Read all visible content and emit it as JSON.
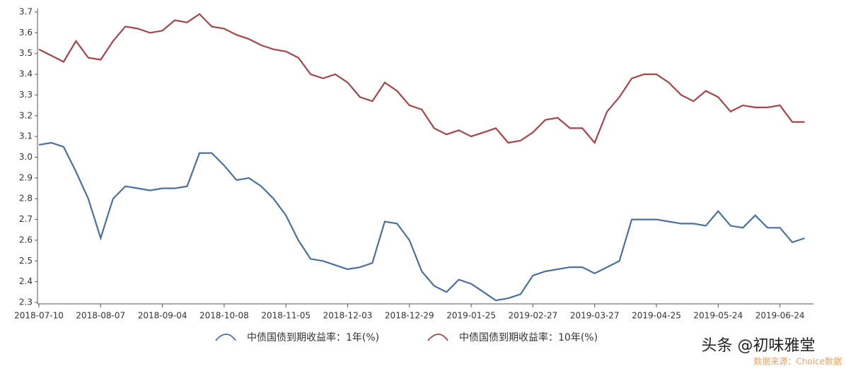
{
  "chart_data": {
    "type": "line",
    "categories": [
      "2018-07-10",
      null,
      null,
      null,
      null,
      "2018-08-07",
      null,
      null,
      null,
      null,
      "2018-09-04",
      null,
      null,
      null,
      null,
      "2018-10-08",
      null,
      null,
      null,
      null,
      "2018-11-05",
      null,
      null,
      null,
      null,
      "2018-12-03",
      null,
      null,
      null,
      null,
      "2018-12-29",
      null,
      null,
      null,
      null,
      "2019-01-25",
      null,
      null,
      null,
      null,
      "2019-02-27",
      null,
      null,
      null,
      null,
      "2019-03-27",
      null,
      null,
      null,
      null,
      "2019-04-25",
      null,
      null,
      null,
      null,
      "2019-05-24",
      null,
      null,
      null,
      null,
      "2019-06-24",
      null,
      null
    ],
    "series": [
      {
        "name": "中债国债到期收益率：1年(%)",
        "color": "#4a70a0",
        "values": [
          3.06,
          3.07,
          3.05,
          2.93,
          2.8,
          2.61,
          2.8,
          2.86,
          2.85,
          2.84,
          2.85,
          2.85,
          2.86,
          3.02,
          3.02,
          2.96,
          2.89,
          2.9,
          2.86,
          2.8,
          2.72,
          2.6,
          2.51,
          2.5,
          2.48,
          2.46,
          2.47,
          2.49,
          2.69,
          2.68,
          2.6,
          2.45,
          2.38,
          2.35,
          2.41,
          2.39,
          2.35,
          2.31,
          2.32,
          2.34,
          2.43,
          2.45,
          2.46,
          2.47,
          2.47,
          2.44,
          2.47,
          2.5,
          2.7,
          2.7,
          2.7,
          2.69,
          2.68,
          2.68,
          2.67,
          2.74,
          2.67,
          2.66,
          2.72,
          2.66,
          2.66,
          2.59,
          2.61
        ]
      },
      {
        "name": "中债国债到期收益率：10年(%)",
        "color": "#a84448",
        "values": [
          3.52,
          3.49,
          3.46,
          3.56,
          3.48,
          3.47,
          3.56,
          3.63,
          3.62,
          3.6,
          3.61,
          3.66,
          3.65,
          3.69,
          3.63,
          3.62,
          3.59,
          3.57,
          3.54,
          3.52,
          3.51,
          3.48,
          3.4,
          3.38,
          3.4,
          3.36,
          3.29,
          3.27,
          3.36,
          3.32,
          3.25,
          3.23,
          3.14,
          3.11,
          3.13,
          3.1,
          3.12,
          3.14,
          3.07,
          3.08,
          3.12,
          3.18,
          3.19,
          3.14,
          3.14,
          3.07,
          3.22,
          3.29,
          3.38,
          3.4,
          3.4,
          3.36,
          3.3,
          3.27,
          3.32,
          3.29,
          3.22,
          3.25,
          3.24,
          3.24,
          3.25,
          3.17,
          3.17
        ]
      }
    ],
    "ylim": [
      2.3,
      3.7
    ],
    "yticks": [
      2.3,
      2.4,
      2.5,
      2.6,
      2.7,
      2.8,
      2.9,
      {
        "value": 3,
        "label": "3.0"
      },
      3.1,
      3.2,
      3.3,
      3.4,
      3.5,
      3.6,
      3.7
    ],
    "legend": "bottom",
    "annotations": [
      "头条 @初味雅堂",
      "数据来源：Choice数据"
    ]
  }
}
